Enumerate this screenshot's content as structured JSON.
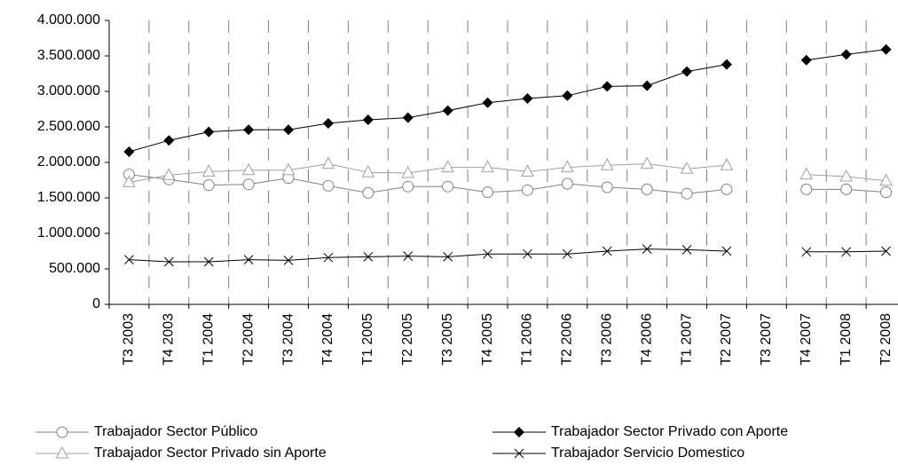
{
  "chart_data": {
    "type": "line",
    "categories": [
      "T3 2003",
      "T4 2003",
      "T1 2004",
      "T2 2004",
      "T3 2004",
      "T4 2004",
      "T1 2005",
      "T2 2005",
      "T3 2005",
      "T4 2005",
      "T1 2006",
      "T2 2006",
      "T3 2006",
      "T4 2006",
      "T1 2007",
      "T2 2007",
      "T3 2007",
      "T4 2007",
      "T1 2008",
      "T2 2008"
    ],
    "series": [
      {
        "name": "Trabajador Sector Público",
        "color": "#808080",
        "marker": "circle",
        "values": [
          1830000,
          1760000,
          1680000,
          1690000,
          1780000,
          1670000,
          1570000,
          1660000,
          1660000,
          1580000,
          1610000,
          1700000,
          1650000,
          1620000,
          1560000,
          1620000,
          null,
          1620000,
          1620000,
          1580000
        ]
      },
      {
        "name": "Trabajador Sector Privado con Aporte",
        "color": "#000000",
        "marker": "diamond",
        "values": [
          2150000,
          2310000,
          2430000,
          2460000,
          2460000,
          2550000,
          2600000,
          2630000,
          2730000,
          2840000,
          2900000,
          2940000,
          3070000,
          3080000,
          3280000,
          3380000,
          null,
          3440000,
          3520000,
          3590000
        ]
      },
      {
        "name": "Trabajador Sector Privado sin Aporte",
        "color": "#a0a0a0",
        "marker": "triangle",
        "values": [
          1720000,
          1820000,
          1870000,
          1890000,
          1890000,
          1980000,
          1860000,
          1850000,
          1930000,
          1930000,
          1870000,
          1930000,
          1960000,
          1980000,
          1910000,
          1960000,
          null,
          1830000,
          1800000,
          1740000
        ]
      },
      {
        "name": "Trabajador Servicio Domestico",
        "color": "#000000",
        "marker": "x",
        "values": [
          630000,
          600000,
          600000,
          630000,
          620000,
          660000,
          670000,
          680000,
          670000,
          710000,
          710000,
          710000,
          750000,
          780000,
          770000,
          750000,
          null,
          740000,
          740000,
          750000
        ]
      }
    ],
    "ylim": [
      0,
      4000000
    ],
    "yticks": [
      0,
      {
        "value": 500000,
        "label": "500.000"
      },
      {
        "value": 1000000,
        "label": "1.000.000"
      },
      {
        "value": 1500000,
        "label": "1.500.000"
      },
      {
        "value": 2000000,
        "label": "2.000.000"
      },
      {
        "value": 2500000,
        "label": "2.500.000"
      },
      {
        "value": 3000000,
        "label": "3.000.000"
      },
      {
        "value": 3500000,
        "label": "3.500.000"
      },
      {
        "value": 4000000,
        "label": "4.000.000"
      }
    ],
    "grid": "x-dashed",
    "legend": "bottom"
  }
}
